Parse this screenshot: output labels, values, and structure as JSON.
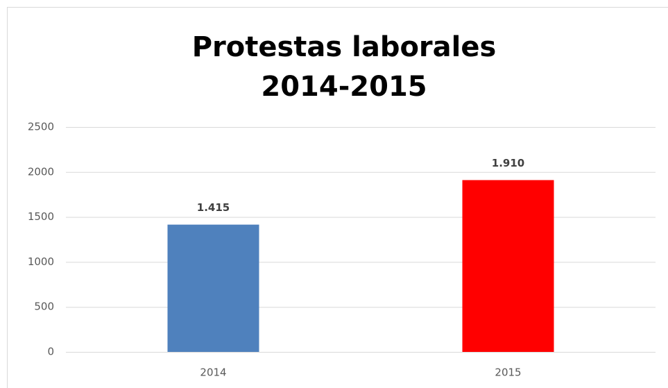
{
  "chart_data": {
    "type": "bar",
    "title": [
      "Protestas laborales",
      "2014-2015"
    ],
    "categories": [
      "2014",
      "2015"
    ],
    "values": [
      1415,
      1910
    ],
    "value_labels": [
      "1.415",
      "1.910"
    ],
    "colors": [
      "#4f81bd",
      "#ff0000"
    ],
    "ylim": [
      0,
      2500
    ],
    "yticks": [
      0,
      500,
      1000,
      1500,
      2000,
      2500
    ],
    "grid": true
  }
}
